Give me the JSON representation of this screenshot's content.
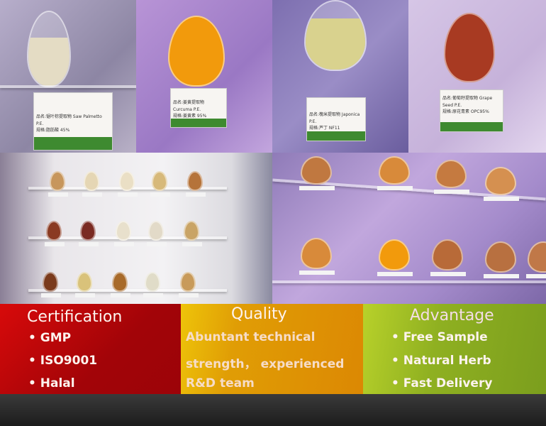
{
  "photos": {
    "top": [
      {
        "name": "品名:锯叶棕提取物 Saw Palmetto P.E.",
        "spec": "规格:脂肪酸 45%",
        "powder": "#e4dcc4"
      },
      {
        "name": "品名:姜黄提取物 Curcuma P.E.",
        "spec": "规格:姜黄素 95%",
        "powder": "#f29a0c"
      },
      {
        "name": "品名:槐米提取物 Japonica P.E.",
        "spec": "规格:芦丁 NF11",
        "powder": "#d9d28e"
      },
      {
        "name": "品名:葡萄籽提取物 Grape Seed P.E.",
        "spec": "规格:原花青素 OPC95%",
        "powder": "#a83a22"
      }
    ]
  },
  "banner": {
    "certification": {
      "title": "Certification",
      "items": [
        "• GMP",
        "• ISO9001",
        "• Halal"
      ],
      "color": "#c00808"
    },
    "quality": {
      "title": "Quality",
      "lines": [
        "Abuntant technical",
        "strength， experienced",
        "R&D team"
      ],
      "color": "#e09a05"
    },
    "advantage": {
      "title": "Advantage",
      "items": [
        "• Free Sample",
        "• Natural Herb",
        "• Fast Delivery"
      ],
      "color": "#93b323"
    }
  }
}
